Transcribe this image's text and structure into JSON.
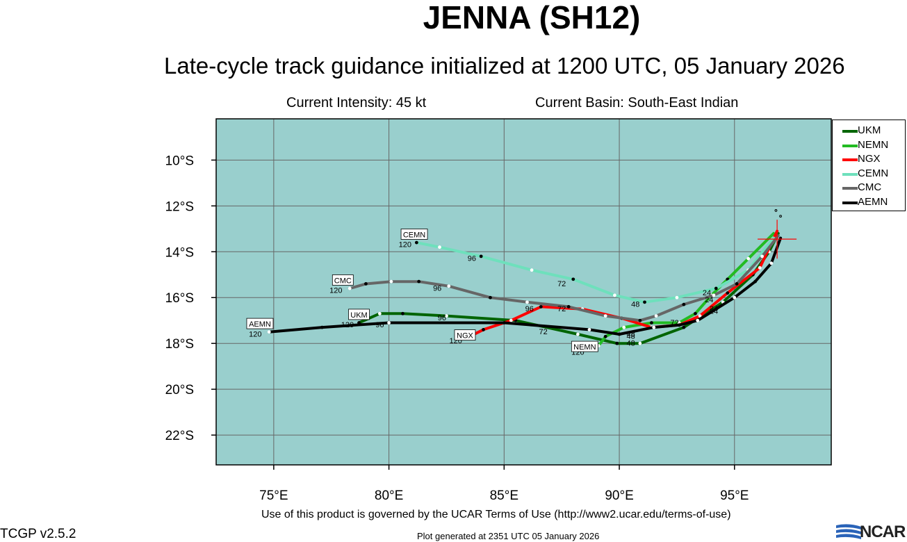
{
  "title": "JENNA (SH12)",
  "subtitle": "Late-cycle track guidance initialized at 1200 UTC, 05 January 2026",
  "current_intensity": "Current Intensity: 45 kt",
  "current_basin": "Current Basin: South-East Indian",
  "footer_terms": "Use of this product is governed by the UCAR Terms of Use (http://www2.ucar.edu/terms-of-use)",
  "footer_version": "TCGP v2.5.2",
  "footer_generated": "Plot generated at 2351 UTC   05 January 2026",
  "logo_text": "NCAR",
  "colors": {
    "ocean": "#99cfcd",
    "grid": "#666666",
    "current_position": "#ff0000"
  },
  "axes": {
    "lon_range": [
      72.5,
      99.2
    ],
    "lat_range": [
      -23.3,
      -8.2
    ],
    "lon_ticks": [
      {
        "value": 75,
        "label": "75°E"
      },
      {
        "value": 80,
        "label": "80°E"
      },
      {
        "value": 85,
        "label": "85°E"
      },
      {
        "value": 90,
        "label": "90°E"
      },
      {
        "value": 95,
        "label": "95°E"
      }
    ],
    "lat_ticks": [
      {
        "value": -10,
        "label": "10°S"
      },
      {
        "value": -12,
        "label": "12°S"
      },
      {
        "value": -14,
        "label": "14°S"
      },
      {
        "value": -16,
        "label": "16°S"
      },
      {
        "value": -18,
        "label": "18°S"
      },
      {
        "value": -20,
        "label": "20°S"
      },
      {
        "value": -22,
        "label": "22°S"
      }
    ]
  },
  "current_position": {
    "lon": 96.85,
    "lat": -13.45
  },
  "islands": [
    {
      "lon": 96.8,
      "lat": -12.2
    },
    {
      "lon": 97.0,
      "lat": -12.45
    }
  ],
  "tracks": [
    {
      "name": "UKM",
      "color": "#006400",
      "points": [
        [
          96.9,
          -13.2
        ],
        [
          96.5,
          -14.0
        ],
        [
          95.8,
          -15.0
        ],
        [
          94.5,
          -16.2
        ],
        [
          92.8,
          -17.3
        ],
        [
          90.9,
          -18.0
        ],
        [
          89.9,
          -18.0
        ],
        [
          88.2,
          -17.6
        ],
        [
          85.5,
          -17.0
        ],
        [
          82.5,
          -16.8
        ],
        [
          80.6,
          -16.7
        ],
        [
          79.6,
          -16.7
        ],
        [
          78.7,
          -17.1
        ]
      ],
      "labels": [
        {
          "text": "24",
          "lon": 94.1,
          "lat": -16.7
        },
        {
          "text": "48",
          "lon": 90.5,
          "lat": -18.1
        },
        {
          "text": "72",
          "lon": 86.7,
          "lat": -17.6
        },
        {
          "text": "96",
          "lon": 82.3,
          "lat": -17.0
        },
        {
          "text": "120",
          "lon": 78.2,
          "lat": -17.3
        }
      ],
      "tag": {
        "text": "UKM",
        "lon": 78.7,
        "lat": -16.9
      }
    },
    {
      "name": "NEMN",
      "color": "#22bb22",
      "points": [
        [
          96.7,
          -13.2
        ],
        [
          95.6,
          -14.3
        ],
        [
          94.7,
          -15.2
        ],
        [
          94.0,
          -15.9
        ],
        [
          93.3,
          -16.7
        ],
        [
          92.6,
          -17.1
        ],
        [
          91.4,
          -17.1
        ],
        [
          90.2,
          -17.3
        ],
        [
          89.4,
          -17.7
        ],
        [
          89.1,
          -18.1
        ]
      ],
      "labels": [
        {
          "text": "24",
          "lon": 93.9,
          "lat": -16.2
        },
        {
          "text": "48",
          "lon": 90.5,
          "lat": -17.7
        },
        {
          "text": "120",
          "lon": 88.2,
          "lat": -18.5
        }
      ],
      "tag": {
        "text": "NEMN",
        "lon": 88.5,
        "lat": -18.3
      }
    },
    {
      "name": "NGX",
      "color": "#ff0000",
      "points": [
        [
          96.85,
          -13.1
        ],
        [
          96.1,
          -14.7
        ],
        [
          94.7,
          -15.8
        ],
        [
          93.5,
          -16.8
        ],
        [
          92.6,
          -17.2
        ],
        [
          91.4,
          -17.3
        ],
        [
          90.1,
          -16.9
        ],
        [
          88.4,
          -16.5
        ],
        [
          86.6,
          -16.4
        ],
        [
          85.3,
          -17.0
        ],
        [
          84.1,
          -17.4
        ],
        [
          83.3,
          -17.8
        ]
      ],
      "labels": [
        {
          "text": "72",
          "lon": 92.4,
          "lat": -17.2
        },
        {
          "text": "96",
          "lon": 86.1,
          "lat": -16.6
        },
        {
          "text": "120",
          "lon": 82.9,
          "lat": -18.0
        }
      ],
      "tag": {
        "text": "NGX",
        "lon": 83.3,
        "lat": -17.8
      }
    },
    {
      "name": "CEMN",
      "color": "#6ee0bc",
      "points": [
        [
          96.7,
          -13.4
        ],
        [
          95.6,
          -14.8
        ],
        [
          94.2,
          -15.6
        ],
        [
          92.5,
          -16.0
        ],
        [
          91.1,
          -16.2
        ],
        [
          89.8,
          -15.9
        ],
        [
          88.0,
          -15.2
        ],
        [
          86.2,
          -14.8
        ],
        [
          84.0,
          -14.2
        ],
        [
          82.2,
          -13.8
        ],
        [
          81.2,
          -13.6
        ]
      ],
      "labels": [
        {
          "text": "48",
          "lon": 90.7,
          "lat": -16.4
        },
        {
          "text": "72",
          "lon": 87.5,
          "lat": -15.5
        },
        {
          "text": "96",
          "lon": 83.6,
          "lat": -14.4
        },
        {
          "text": "120",
          "lon": 80.7,
          "lat": -13.8
        }
      ],
      "tag": {
        "text": "CEMN",
        "lon": 81.1,
        "lat": -13.4
      }
    },
    {
      "name": "CMC",
      "color": "#666666",
      "points": [
        [
          96.9,
          -13.3
        ],
        [
          96.2,
          -14.2
        ],
        [
          95.1,
          -15.4
        ],
        [
          94.1,
          -15.9
        ],
        [
          92.8,
          -16.3
        ],
        [
          91.6,
          -16.8
        ],
        [
          90.9,
          -17.0
        ],
        [
          89.4,
          -16.8
        ],
        [
          87.8,
          -16.4
        ],
        [
          86.0,
          -16.2
        ],
        [
          84.4,
          -16.0
        ],
        [
          82.6,
          -15.5
        ],
        [
          81.3,
          -15.3
        ],
        [
          80.1,
          -15.3
        ],
        [
          79.0,
          -15.4
        ],
        [
          78.3,
          -15.6
        ]
      ],
      "labels": [
        {
          "text": "24",
          "lon": 93.8,
          "lat": -15.9
        },
        {
          "text": "72",
          "lon": 87.5,
          "lat": -16.6
        },
        {
          "text": "96",
          "lon": 82.1,
          "lat": -15.7
        },
        {
          "text": "120",
          "lon": 77.7,
          "lat": -15.8
        }
      ],
      "tag": {
        "text": "CMC",
        "lon": 78.0,
        "lat": -15.4
      }
    },
    {
      "name": "AEMN",
      "color": "#000000",
      "points": [
        [
          97.0,
          -13.4
        ],
        [
          96.6,
          -14.5
        ],
        [
          95.9,
          -15.3
        ],
        [
          95.0,
          -16.0
        ],
        [
          94.2,
          -16.5
        ],
        [
          93.4,
          -17.0
        ],
        [
          92.6,
          -17.2
        ],
        [
          91.5,
          -17.3
        ],
        [
          90.0,
          -17.6
        ],
        [
          88.7,
          -17.4
        ],
        [
          85.0,
          -17.1
        ],
        [
          80.0,
          -17.1
        ],
        [
          77.1,
          -17.3
        ],
        [
          74.8,
          -17.5
        ]
      ],
      "labels": [
        {
          "text": "24",
          "lon": 94.1,
          "lat": -16.6
        },
        {
          "text": "48",
          "lon": 90.5,
          "lat": -17.8
        },
        {
          "text": "96",
          "lon": 79.6,
          "lat": -17.3
        },
        {
          "text": "120",
          "lon": 74.2,
          "lat": -17.7
        }
      ],
      "tag": {
        "text": "AEMN",
        "lon": 74.4,
        "lat": -17.3
      }
    }
  ]
}
